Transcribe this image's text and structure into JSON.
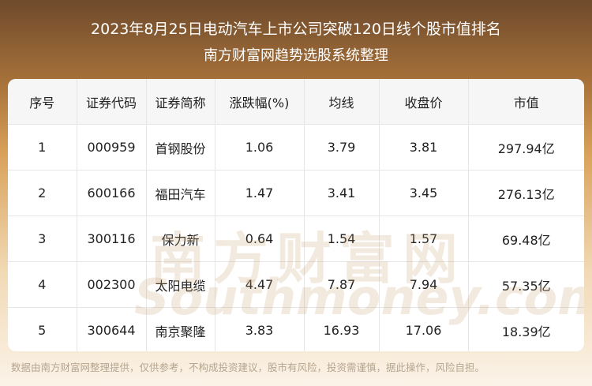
{
  "header": {
    "title": "2023年8月25日电动汽车上市公司突破120日线个股市值排名",
    "subtitle": "南方财富网趋势选股系统整理"
  },
  "table": {
    "columns": [
      "序号",
      "证券代码",
      "证券简称",
      "涨跌幅(%)",
      "均线",
      "收盘价",
      "市值"
    ],
    "rows": [
      [
        "1",
        "000959",
        "首钢股份",
        "1.06",
        "3.79",
        "3.81",
        "297.94亿"
      ],
      [
        "2",
        "600166",
        "福田汽车",
        "1.47",
        "3.41",
        "3.45",
        "276.13亿"
      ],
      [
        "3",
        "300116",
        "保力新",
        "0.64",
        "1.54",
        "1.57",
        "69.48亿"
      ],
      [
        "4",
        "002300",
        "太阳电缆",
        "4.47",
        "7.87",
        "7.94",
        "57.35亿"
      ],
      [
        "5",
        "300644",
        "南京聚隆",
        "3.83",
        "16.93",
        "17.06",
        "18.39亿"
      ]
    ]
  },
  "watermark": {
    "cn": "南方财富网",
    "en": "Southmoney.com"
  },
  "footer": "数据由南方财富网整理提供，仅供参考，不构成投资建议，股市有风险，投资需谨慎，据此操作，风险自担。"
}
